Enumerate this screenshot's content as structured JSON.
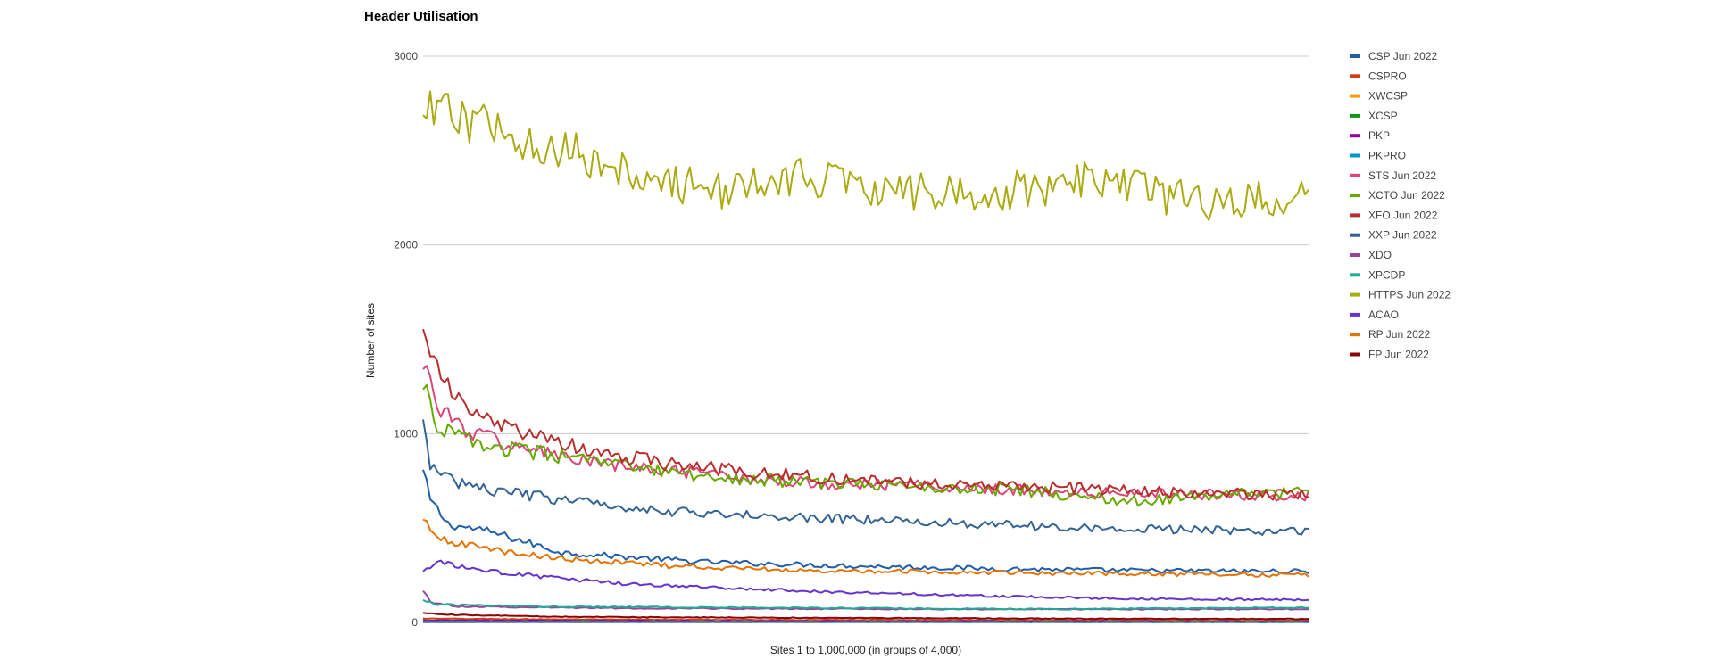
{
  "chart_data": {
    "type": "line",
    "title": "Header Utilisation",
    "xlabel": "Sites 1 to 1,000,000 (in groups of 4,000)",
    "ylabel": "Number of sites",
    "x": {
      "start": 1,
      "end": 250
    },
    "ylim": [
      0,
      3000
    ],
    "yticks": [
      "0",
      "1000",
      "2000",
      "3000"
    ],
    "grid": true,
    "legend_position": "right",
    "series": [
      {
        "name": "CSP Jun 2022",
        "color": "#1f5ea8",
        "anchors": [
          [
            1,
            800
          ],
          [
            3,
            650
          ],
          [
            8,
            520
          ],
          [
            20,
            480
          ],
          [
            40,
            370
          ],
          [
            80,
            320
          ],
          [
            120,
            300
          ],
          [
            160,
            285
          ],
          [
            200,
            275
          ],
          [
            250,
            270
          ]
        ]
      },
      {
        "name": "CSPRO",
        "color": "#dc3912",
        "anchors": [
          [
            1,
            20
          ],
          [
            50,
            15
          ],
          [
            150,
            12
          ],
          [
            250,
            10
          ]
        ]
      },
      {
        "name": "XWCSP",
        "color": "#ff9900",
        "anchors": [
          [
            1,
            8
          ],
          [
            125,
            6
          ],
          [
            250,
            5
          ]
        ]
      },
      {
        "name": "XCSP",
        "color": "#109618",
        "anchors": [
          [
            1,
            6
          ],
          [
            125,
            4
          ],
          [
            250,
            4
          ]
        ]
      },
      {
        "name": "PKP",
        "color": "#990099",
        "anchors": [
          [
            1,
            10
          ],
          [
            125,
            6
          ],
          [
            250,
            4
          ]
        ]
      },
      {
        "name": "PKPRO",
        "color": "#0099c6",
        "anchors": [
          [
            1,
            4
          ],
          [
            250,
            2
          ]
        ]
      },
      {
        "name": "STS Jun 2022",
        "color": "#dd4477",
        "anchors": [
          [
            1,
            1400
          ],
          [
            5,
            1150
          ],
          [
            12,
            1030
          ],
          [
            25,
            940
          ],
          [
            50,
            840
          ],
          [
            80,
            780
          ],
          [
            110,
            740
          ],
          [
            150,
            720
          ],
          [
            180,
            690
          ],
          [
            200,
            680
          ],
          [
            230,
            680
          ],
          [
            250,
            670
          ]
        ]
      },
      {
        "name": "XCTO Jun 2022",
        "color": "#66aa00",
        "anchors": [
          [
            1,
            1280
          ],
          [
            4,
            1060
          ],
          [
            10,
            990
          ],
          [
            20,
            930
          ],
          [
            40,
            880
          ],
          [
            70,
            790
          ],
          [
            100,
            750
          ],
          [
            140,
            720
          ],
          [
            170,
            700
          ],
          [
            200,
            640
          ],
          [
            230,
            680
          ],
          [
            250,
            690
          ]
        ]
      },
      {
        "name": "XFO Jun 2022",
        "color": "#b82e2e",
        "anchors": [
          [
            1,
            1600
          ],
          [
            4,
            1380
          ],
          [
            10,
            1180
          ],
          [
            20,
            1060
          ],
          [
            35,
            970
          ],
          [
            50,
            900
          ],
          [
            70,
            840
          ],
          [
            90,
            800
          ],
          [
            110,
            770
          ],
          [
            140,
            740
          ],
          [
            170,
            720
          ],
          [
            200,
            700
          ],
          [
            230,
            680
          ],
          [
            250,
            680
          ]
        ]
      },
      {
        "name": "XXP Jun 2022",
        "color": "#316395",
        "anchors": [
          [
            1,
            1100
          ],
          [
            3,
            820
          ],
          [
            8,
            760
          ],
          [
            20,
            700
          ],
          [
            40,
            650
          ],
          [
            70,
            590
          ],
          [
            100,
            560
          ],
          [
            130,
            540
          ],
          [
            160,
            520
          ],
          [
            190,
            500
          ],
          [
            220,
            490
          ],
          [
            250,
            480
          ]
        ]
      },
      {
        "name": "XDO",
        "color": "#994499",
        "anchors": [
          [
            1,
            170
          ],
          [
            3,
            110
          ],
          [
            10,
            85
          ],
          [
            60,
            75
          ],
          [
            150,
            70
          ],
          [
            250,
            70
          ]
        ]
      },
      {
        "name": "XPCDP",
        "color": "#22aa99",
        "anchors": [
          [
            1,
            120
          ],
          [
            5,
            95
          ],
          [
            30,
            85
          ],
          [
            80,
            80
          ],
          [
            130,
            75
          ],
          [
            180,
            70
          ],
          [
            250,
            80
          ]
        ]
      },
      {
        "name": "HTTPS Jun 2022",
        "color": "#aaaa11",
        "anchors": [
          [
            1,
            2700
          ],
          [
            10,
            2680
          ],
          [
            20,
            2620
          ],
          [
            30,
            2560
          ],
          [
            40,
            2520
          ],
          [
            50,
            2420
          ],
          [
            60,
            2400
          ],
          [
            70,
            2330
          ],
          [
            80,
            2300
          ],
          [
            90,
            2290
          ],
          [
            100,
            2330
          ],
          [
            110,
            2360
          ],
          [
            120,
            2350
          ],
          [
            130,
            2300
          ],
          [
            140,
            2280
          ],
          [
            150,
            2290
          ],
          [
            160,
            2260
          ],
          [
            170,
            2300
          ],
          [
            180,
            2320
          ],
          [
            190,
            2340
          ],
          [
            200,
            2300
          ],
          [
            210,
            2260
          ],
          [
            220,
            2220
          ],
          [
            230,
            2230
          ],
          [
            240,
            2250
          ],
          [
            250,
            2230
          ]
        ]
      },
      {
        "name": "ACAO",
        "color": "#6633cc",
        "anchors": [
          [
            1,
            270
          ],
          [
            5,
            320
          ],
          [
            15,
            280
          ],
          [
            30,
            250
          ],
          [
            60,
            200
          ],
          [
            90,
            180
          ],
          [
            120,
            160
          ],
          [
            160,
            140
          ],
          [
            200,
            125
          ],
          [
            250,
            120
          ]
        ]
      },
      {
        "name": "RP Jun 2022",
        "color": "#e67300",
        "anchors": [
          [
            1,
            540
          ],
          [
            4,
            470
          ],
          [
            10,
            420
          ],
          [
            25,
            370
          ],
          [
            45,
            330
          ],
          [
            70,
            300
          ],
          [
            100,
            280
          ],
          [
            140,
            270
          ],
          [
            180,
            260
          ],
          [
            220,
            255
          ],
          [
            250,
            250
          ]
        ]
      },
      {
        "name": "FP Jun 2022",
        "color": "#8b0707",
        "anchors": [
          [
            1,
            50
          ],
          [
            10,
            40
          ],
          [
            40,
            30
          ],
          [
            100,
            25
          ],
          [
            180,
            20
          ],
          [
            250,
            18
          ]
        ]
      }
    ]
  }
}
